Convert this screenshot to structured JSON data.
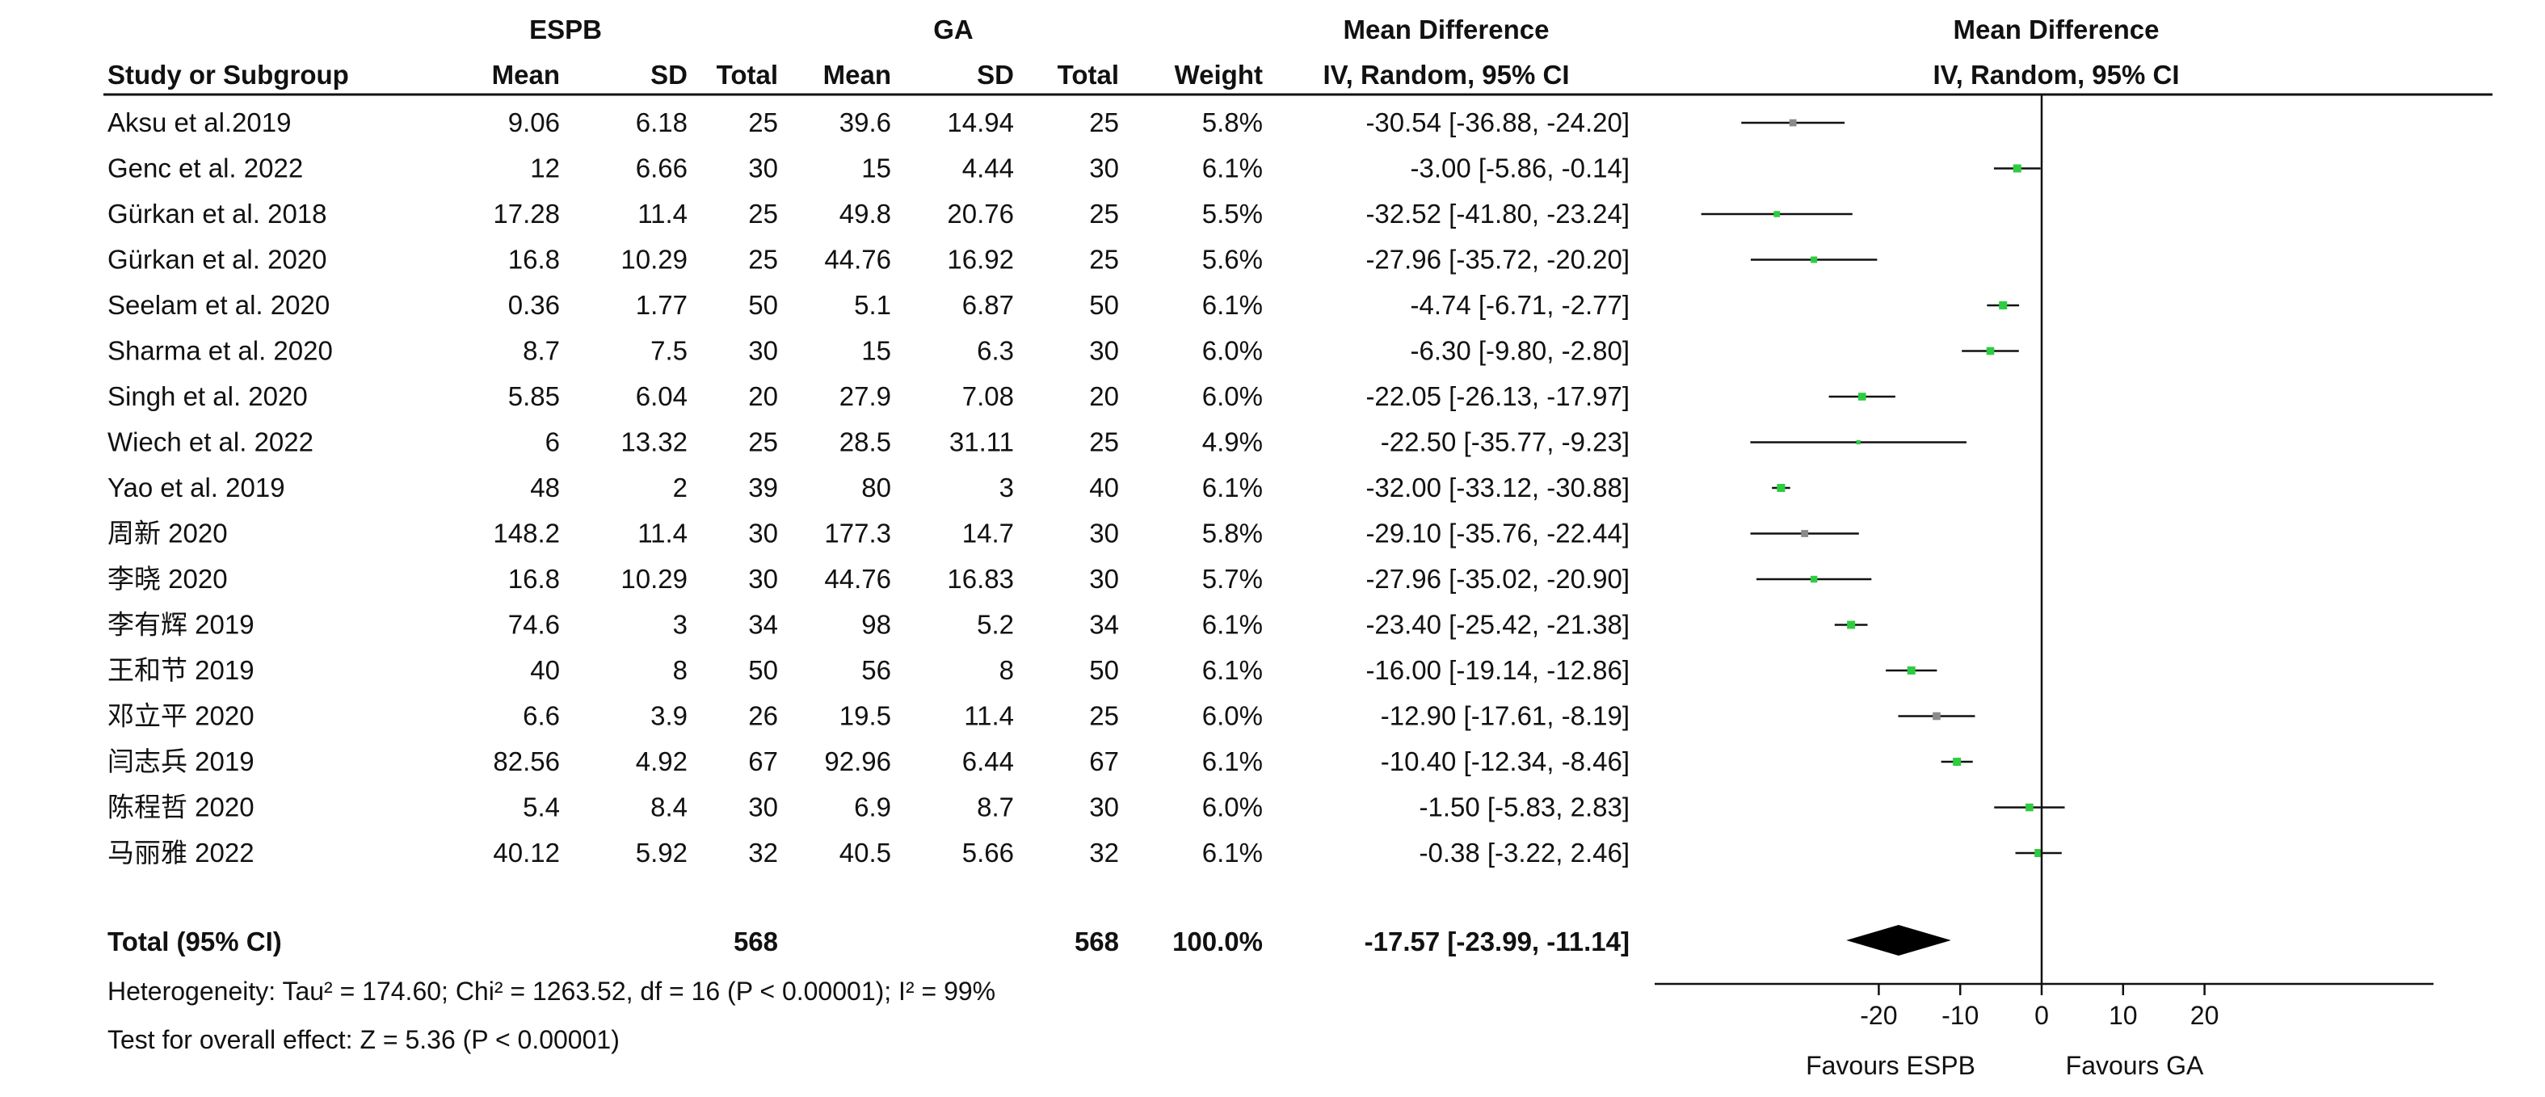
{
  "header": {
    "group1": "ESPB",
    "group2": "GA",
    "effect_left": "Mean Difference",
    "effect_left_sub": "IV, Random, 95% CI",
    "effect_right": "Mean Difference",
    "effect_right_sub": "IV, Random, 95% CI",
    "col_study": "Study or Subgroup",
    "col_mean1": "Mean",
    "col_sd1": "SD",
    "col_total1": "Total",
    "col_mean2": "Mean",
    "col_sd2": "SD",
    "col_total2": "Total",
    "col_weight": "Weight"
  },
  "total": {
    "label": "Total (95% CI)",
    "n1": "568",
    "n2": "568",
    "weight": "100.0%",
    "ci_text": "-17.57 [-23.99, -11.14]"
  },
  "footer": {
    "heterogeneity": "Heterogeneity: Tau² = 174.60; Chi² = 1263.52, df = 16 (P < 0.00001); I² = 99%",
    "overall": "Test for overall effect: Z = 5.36 (P < 0.00001)",
    "favours_left": "Favours ESPB",
    "favours_right": "Favours GA"
  },
  "colors": {
    "marker_green": "#2ecc40",
    "marker_gray": "#8a8a8a",
    "line": "#111111"
  },
  "chart_data": {
    "type": "forest",
    "xlim": [
      -40,
      20
    ],
    "xticks": [
      -20,
      -10,
      0,
      10,
      20
    ],
    "studies": [
      {
        "study": "Aksu et al.2019",
        "mean1": "9.06",
        "sd1": "6.18",
        "n1": "25",
        "mean2": "39.6",
        "sd2": "14.94",
        "n2": "25",
        "weight": "5.8%",
        "ci_text": "-30.54 [-36.88, -24.20]",
        "md": -30.54,
        "lo": -36.88,
        "hi": -24.2,
        "w": 5.8,
        "marker": "gray"
      },
      {
        "study": "Genc et al. 2022",
        "mean1": "12",
        "sd1": "6.66",
        "n1": "30",
        "mean2": "15",
        "sd2": "4.44",
        "n2": "30",
        "weight": "6.1%",
        "ci_text": "-3.00 [-5.86, -0.14]",
        "md": -3.0,
        "lo": -5.86,
        "hi": -0.14,
        "w": 6.1,
        "marker": "green"
      },
      {
        "study": "Gürkan et al. 2018",
        "mean1": "17.28",
        "sd1": "11.4",
        "n1": "25",
        "mean2": "49.8",
        "sd2": "20.76",
        "n2": "25",
        "weight": "5.5%",
        "ci_text": "-32.52 [-41.80, -23.24]",
        "md": -32.52,
        "lo": -41.8,
        "hi": -23.24,
        "w": 5.5,
        "marker": "green"
      },
      {
        "study": "Gürkan et al. 2020",
        "mean1": "16.8",
        "sd1": "10.29",
        "n1": "25",
        "mean2": "44.76",
        "sd2": "16.92",
        "n2": "25",
        "weight": "5.6%",
        "ci_text": "-27.96 [-35.72, -20.20]",
        "md": -27.96,
        "lo": -35.72,
        "hi": -20.2,
        "w": 5.6,
        "marker": "green"
      },
      {
        "study": "Seelam et al. 2020",
        "mean1": "0.36",
        "sd1": "1.77",
        "n1": "50",
        "mean2": "5.1",
        "sd2": "6.87",
        "n2": "50",
        "weight": "6.1%",
        "ci_text": "-4.74 [-6.71, -2.77]",
        "md": -4.74,
        "lo": -6.71,
        "hi": -2.77,
        "w": 6.1,
        "marker": "green"
      },
      {
        "study": "Sharma et al. 2020",
        "mean1": "8.7",
        "sd1": "7.5",
        "n1": "30",
        "mean2": "15",
        "sd2": "6.3",
        "n2": "30",
        "weight": "6.0%",
        "ci_text": "-6.30 [-9.80, -2.80]",
        "md": -6.3,
        "lo": -9.8,
        "hi": -2.8,
        "w": 6.0,
        "marker": "green"
      },
      {
        "study": "Singh et al. 2020",
        "mean1": "5.85",
        "sd1": "6.04",
        "n1": "20",
        "mean2": "27.9",
        "sd2": "7.08",
        "n2": "20",
        "weight": "6.0%",
        "ci_text": "-22.05 [-26.13, -17.97]",
        "md": -22.05,
        "lo": -26.13,
        "hi": -17.97,
        "w": 6.0,
        "marker": "green"
      },
      {
        "study": "Wiech et al. 2022",
        "mean1": "6",
        "sd1": "13.32",
        "n1": "25",
        "mean2": "28.5",
        "sd2": "31.11",
        "n2": "25",
        "weight": "4.9%",
        "ci_text": "-22.50 [-35.77, -9.23]",
        "md": -22.5,
        "lo": -35.77,
        "hi": -9.23,
        "w": 4.9,
        "marker": "green"
      },
      {
        "study": "Yao et al. 2019",
        "mean1": "48",
        "sd1": "2",
        "n1": "39",
        "mean2": "80",
        "sd2": "3",
        "n2": "40",
        "weight": "6.1%",
        "ci_text": "-32.00 [-33.12, -30.88]",
        "md": -32.0,
        "lo": -33.12,
        "hi": -30.88,
        "w": 6.1,
        "marker": "green"
      },
      {
        "study": "周新 2020",
        "mean1": "148.2",
        "sd1": "11.4",
        "n1": "30",
        "mean2": "177.3",
        "sd2": "14.7",
        "n2": "30",
        "weight": "5.8%",
        "ci_text": "-29.10 [-35.76, -22.44]",
        "md": -29.1,
        "lo": -35.76,
        "hi": -22.44,
        "w": 5.8,
        "marker": "gray"
      },
      {
        "study": "李晓 2020",
        "mean1": "16.8",
        "sd1": "10.29",
        "n1": "30",
        "mean2": "44.76",
        "sd2": "16.83",
        "n2": "30",
        "weight": "5.7%",
        "ci_text": "-27.96 [-35.02, -20.90]",
        "md": -27.96,
        "lo": -35.02,
        "hi": -20.9,
        "w": 5.7,
        "marker": "green"
      },
      {
        "study": "李有辉 2019",
        "mean1": "74.6",
        "sd1": "3",
        "n1": "34",
        "mean2": "98",
        "sd2": "5.2",
        "n2": "34",
        "weight": "6.1%",
        "ci_text": "-23.40 [-25.42, -21.38]",
        "md": -23.4,
        "lo": -25.42,
        "hi": -21.38,
        "w": 6.1,
        "marker": "green"
      },
      {
        "study": "王和节 2019",
        "mean1": "40",
        "sd1": "8",
        "n1": "50",
        "mean2": "56",
        "sd2": "8",
        "n2": "50",
        "weight": "6.1%",
        "ci_text": "-16.00 [-19.14, -12.86]",
        "md": -16.0,
        "lo": -19.14,
        "hi": -12.86,
        "w": 6.1,
        "marker": "green"
      },
      {
        "study": "邓立平 2020",
        "mean1": "6.6",
        "sd1": "3.9",
        "n1": "26",
        "mean2": "19.5",
        "sd2": "11.4",
        "n2": "25",
        "weight": "6.0%",
        "ci_text": "-12.90 [-17.61, -8.19]",
        "md": -12.9,
        "lo": -17.61,
        "hi": -8.19,
        "w": 6.0,
        "marker": "gray"
      },
      {
        "study": "闫志兵 2019",
        "mean1": "82.56",
        "sd1": "4.92",
        "n1": "67",
        "mean2": "92.96",
        "sd2": "6.44",
        "n2": "67",
        "weight": "6.1%",
        "ci_text": "-10.40 [-12.34, -8.46]",
        "md": -10.4,
        "lo": -12.34,
        "hi": -8.46,
        "w": 6.1,
        "marker": "green"
      },
      {
        "study": "陈程哲 2020",
        "mean1": "5.4",
        "sd1": "8.4",
        "n1": "30",
        "mean2": "6.9",
        "sd2": "8.7",
        "n2": "30",
        "weight": "6.0%",
        "ci_text": "-1.50 [-5.83, 2.83]",
        "md": -1.5,
        "lo": -5.83,
        "hi": 2.83,
        "w": 6.0,
        "marker": "green"
      },
      {
        "study": "马丽雅 2022",
        "mean1": "40.12",
        "sd1": "5.92",
        "n1": "32",
        "mean2": "40.5",
        "sd2": "5.66",
        "n2": "32",
        "weight": "6.1%",
        "ci_text": "-0.38 [-3.22, 2.46]",
        "md": -0.38,
        "lo": -3.22,
        "hi": 2.46,
        "w": 6.1,
        "marker": "green"
      }
    ],
    "pooled": {
      "md": -17.57,
      "lo": -23.99,
      "hi": -11.14
    }
  }
}
